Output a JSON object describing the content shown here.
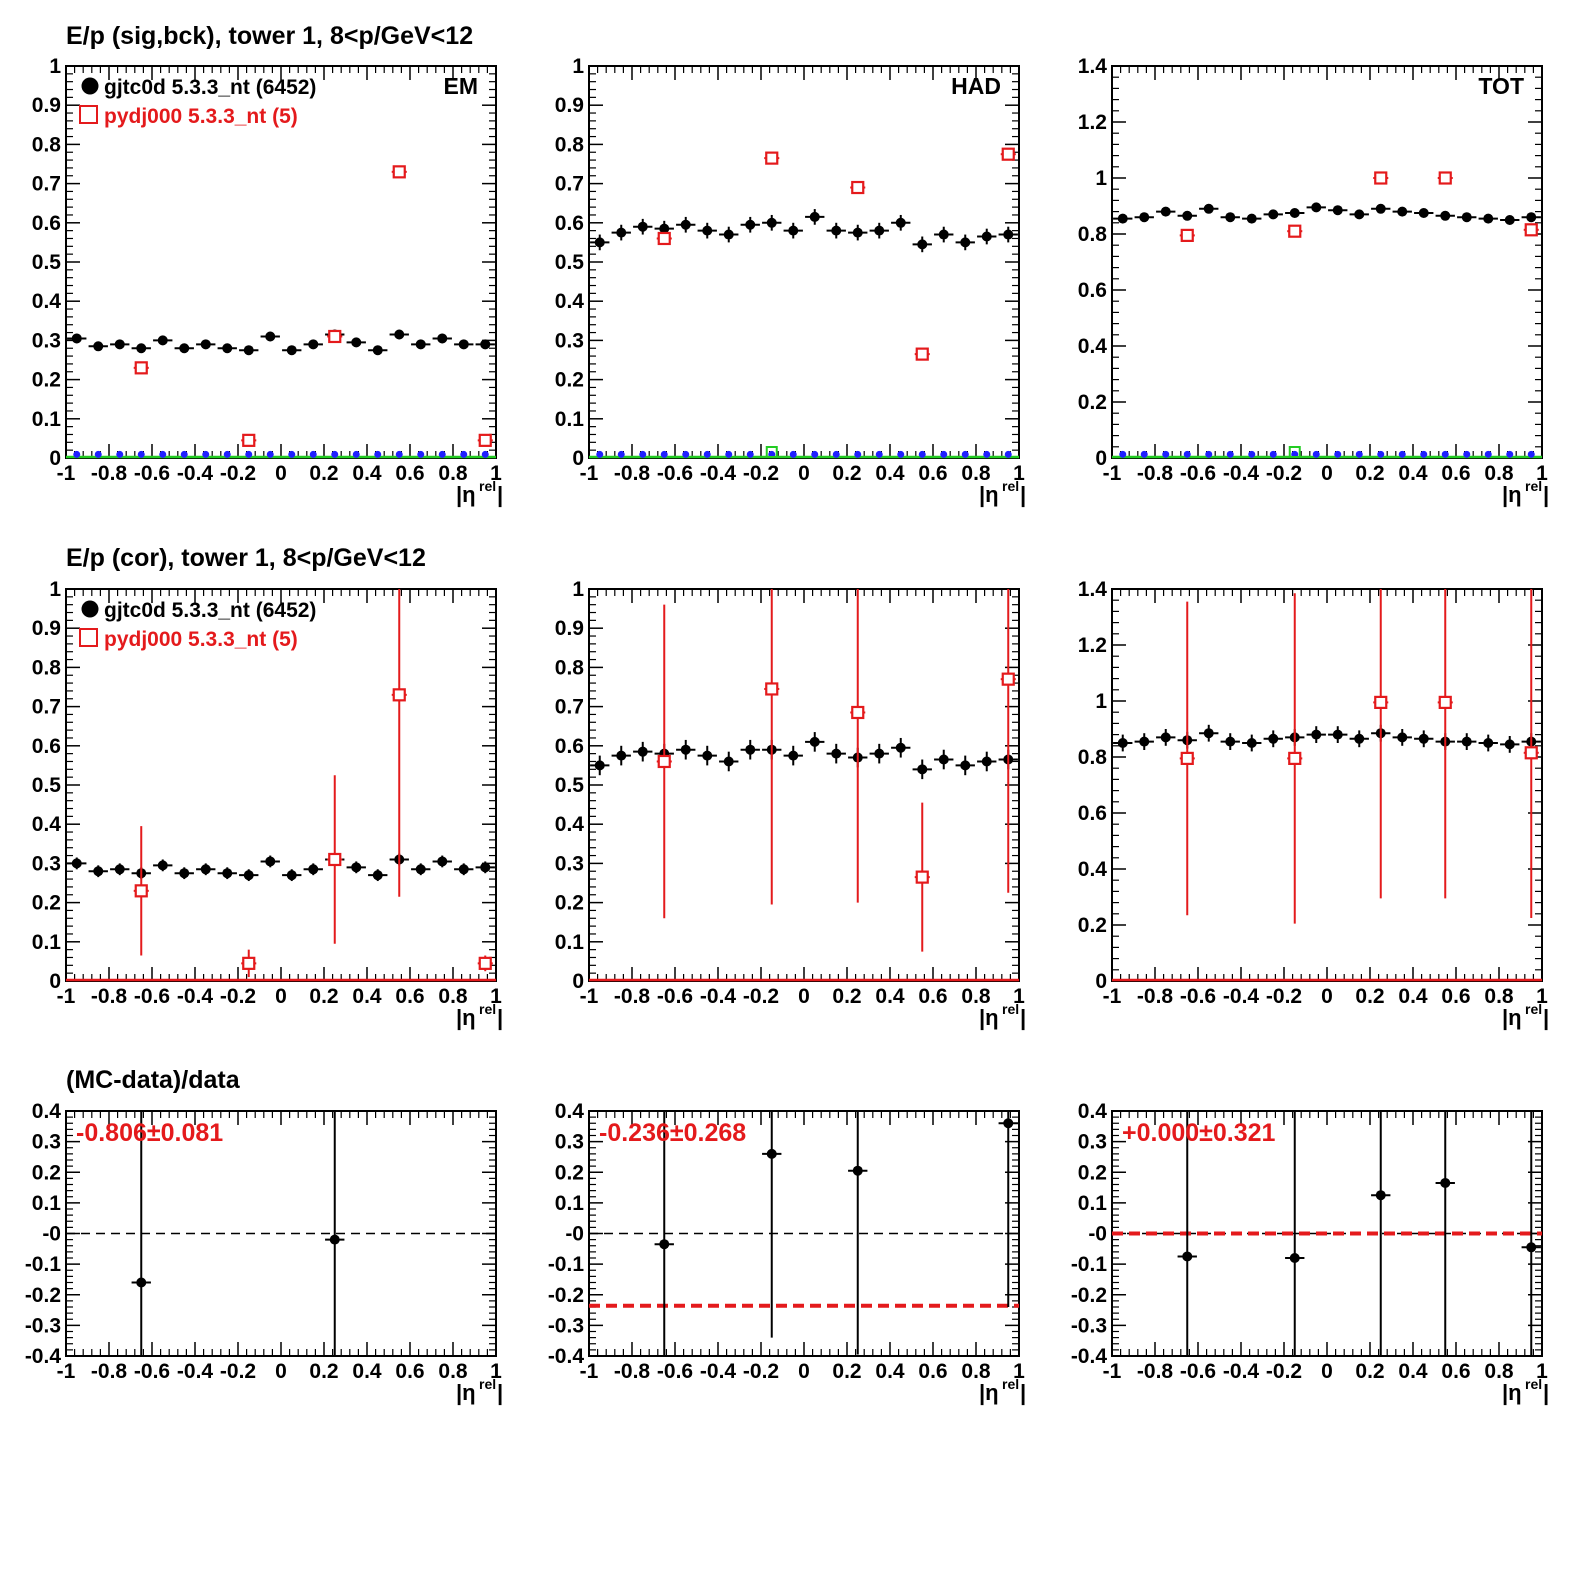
{
  "figure": {
    "row_titles": [
      "E/p (sig,bck), tower 1,  8<p/GeV<12",
      "E/p (cor), tower 1,  8<p/GeV<12",
      "(MC-data)/data"
    ],
    "xlabel": "|η",
    "xlabel_sup": "rel",
    "xlabel_close": "|",
    "colors": {
      "data": "#000000",
      "mc": "#e41a1c",
      "bck_blue": "#1f1fff",
      "bck_green": "#22cc22",
      "dashed_zero": "#000000"
    }
  },
  "legend": {
    "data_label": "gjtc0d 5.3.3_nt (6452)",
    "mc_label": "pydj000 5.3.3_nt (5)"
  },
  "chart_data": [
    {
      "id": "r1c1",
      "type": "scatter",
      "corner_label": "EM",
      "xlim": [
        -1,
        1
      ],
      "ylim": [
        0,
        1
      ],
      "xticks": [
        "-1",
        "-0.8",
        "-0.6",
        "-0.4",
        "-0.2",
        "0",
        "0.2",
        "0.4",
        "0.6",
        "0.8",
        "1"
      ],
      "yticks": [
        "0",
        "0.1",
        "0.2",
        "0.3",
        "0.4",
        "0.5",
        "0.6",
        "0.7",
        "0.8",
        "0.9",
        "1"
      ],
      "series": [
        {
          "name": "gjtc0d 5.3.3_nt (6452)",
          "color": "#000000",
          "marker": "dot",
          "x": [
            -0.95,
            -0.85,
            -0.75,
            -0.65,
            -0.55,
            -0.45,
            -0.35,
            -0.25,
            -0.15,
            -0.05,
            0.05,
            0.15,
            0.25,
            0.35,
            0.45,
            0.55,
            0.65,
            0.75,
            0.85,
            0.95
          ],
          "y": [
            0.305,
            0.285,
            0.29,
            0.28,
            0.3,
            0.28,
            0.29,
            0.28,
            0.275,
            0.31,
            0.275,
            0.29,
            0.315,
            0.295,
            0.275,
            0.315,
            0.29,
            0.305,
            0.29,
            0.29
          ],
          "yerr": [
            0.012,
            0.012,
            0.012,
            0.012,
            0.012,
            0.012,
            0.012,
            0.012,
            0.012,
            0.012,
            0.012,
            0.012,
            0.012,
            0.012,
            0.012,
            0.012,
            0.012,
            0.012,
            0.012,
            0.012
          ]
        },
        {
          "name": "pydj000 5.3.3_nt (5)",
          "color": "#e41a1c",
          "marker": "open-square",
          "x": [
            -0.65,
            -0.15,
            0.25,
            0.55,
            0.95
          ],
          "y": [
            0.23,
            0.045,
            0.31,
            0.73,
            0.045
          ],
          "yerr": [
            0,
            0,
            0,
            0,
            0
          ]
        }
      ],
      "background": {
        "blue_x": [
          -0.95,
          -0.85,
          -0.75,
          -0.65,
          -0.55,
          -0.45,
          -0.35,
          -0.25,
          -0.15,
          -0.05,
          0.05,
          0.15,
          0.25,
          0.35,
          0.45,
          0.55,
          0.65,
          0.75,
          0.85,
          0.95
        ],
        "blue_y": 0.004,
        "green_x": []
      },
      "legend": true
    },
    {
      "id": "r1c2",
      "type": "scatter",
      "corner_label": "HAD",
      "xlim": [
        -1,
        1
      ],
      "ylim": [
        0,
        1
      ],
      "xticks": [
        "-1",
        "-0.8",
        "-0.6",
        "-0.4",
        "-0.2",
        "0",
        "0.2",
        "0.4",
        "0.6",
        "0.8",
        "1"
      ],
      "yticks": [
        "0",
        "0.1",
        "0.2",
        "0.3",
        "0.4",
        "0.5",
        "0.6",
        "0.7",
        "0.8",
        "0.9",
        "1"
      ],
      "series": [
        {
          "name": "gjtc0d 5.3.3_nt (6452)",
          "color": "#000000",
          "marker": "dot",
          "x": [
            -0.95,
            -0.85,
            -0.75,
            -0.65,
            -0.55,
            -0.45,
            -0.35,
            -0.25,
            -0.15,
            -0.05,
            0.05,
            0.15,
            0.25,
            0.35,
            0.45,
            0.55,
            0.65,
            0.75,
            0.85,
            0.95
          ],
          "y": [
            0.55,
            0.575,
            0.59,
            0.585,
            0.595,
            0.58,
            0.57,
            0.595,
            0.6,
            0.58,
            0.615,
            0.58,
            0.575,
            0.58,
            0.6,
            0.545,
            0.57,
            0.55,
            0.565,
            0.57
          ],
          "yerr": [
            0.02,
            0.02,
            0.02,
            0.02,
            0.02,
            0.02,
            0.02,
            0.02,
            0.02,
            0.02,
            0.02,
            0.02,
            0.02,
            0.02,
            0.02,
            0.02,
            0.02,
            0.02,
            0.02,
            0.02
          ]
        },
        {
          "name": "pydj000 5.3.3_nt (5)",
          "color": "#e41a1c",
          "marker": "open-square",
          "x": [
            -0.65,
            -0.15,
            0.25,
            0.55,
            0.95
          ],
          "y": [
            0.56,
            0.765,
            0.69,
            0.265,
            0.775
          ],
          "yerr": [
            0,
            0,
            0,
            0,
            0
          ]
        }
      ],
      "background": {
        "blue_x": [
          -0.95,
          -0.85,
          -0.75,
          -0.65,
          -0.55,
          -0.45,
          -0.35,
          -0.25,
          -0.15,
          -0.05,
          0.05,
          0.15,
          0.25,
          0.35,
          0.45,
          0.55,
          0.65,
          0.75,
          0.85,
          0.95
        ],
        "blue_y": 0.004,
        "green_x": [
          -0.15
        ]
      },
      "legend": false
    },
    {
      "id": "r1c3",
      "type": "scatter",
      "corner_label": "TOT",
      "xlim": [
        -1,
        1
      ],
      "ylim": [
        0,
        1.4
      ],
      "xticks": [
        "-1",
        "-0.8",
        "-0.6",
        "-0.4",
        "-0.2",
        "0",
        "0.2",
        "0.4",
        "0.6",
        "0.8",
        "1"
      ],
      "yticks": [
        "0",
        "0.2",
        "0.4",
        "0.6",
        "0.8",
        "1",
        "1.2",
        "1.4"
      ],
      "series": [
        {
          "name": "gjtc0d 5.3.3_nt (6452)",
          "color": "#000000",
          "marker": "dot",
          "x": [
            -0.95,
            -0.85,
            -0.75,
            -0.65,
            -0.55,
            -0.45,
            -0.35,
            -0.25,
            -0.15,
            -0.05,
            0.05,
            0.15,
            0.25,
            0.35,
            0.45,
            0.55,
            0.65,
            0.75,
            0.85,
            0.95
          ],
          "y": [
            0.855,
            0.86,
            0.88,
            0.865,
            0.89,
            0.86,
            0.855,
            0.87,
            0.875,
            0.895,
            0.885,
            0.87,
            0.89,
            0.88,
            0.875,
            0.865,
            0.86,
            0.855,
            0.85,
            0.86
          ],
          "yerr": [
            0.012,
            0.012,
            0.012,
            0.012,
            0.012,
            0.012,
            0.012,
            0.012,
            0.012,
            0.012,
            0.012,
            0.012,
            0.012,
            0.012,
            0.012,
            0.012,
            0.012,
            0.012,
            0.012,
            0.012
          ]
        },
        {
          "name": "pydj000 5.3.3_nt (5)",
          "color": "#e41a1c",
          "marker": "open-square",
          "x": [
            -0.65,
            -0.15,
            0.25,
            0.55,
            0.95
          ],
          "y": [
            0.795,
            0.81,
            1.0,
            1.0,
            0.815
          ],
          "yerr": [
            0,
            0,
            0,
            0,
            0
          ]
        }
      ],
      "background": {
        "blue_x": [
          -0.95,
          -0.85,
          -0.75,
          -0.65,
          -0.55,
          -0.45,
          -0.35,
          -0.25,
          -0.15,
          -0.05,
          0.05,
          0.15,
          0.25,
          0.35,
          0.45,
          0.55,
          0.65,
          0.75,
          0.85,
          0.95
        ],
        "blue_y": 0.006,
        "green_x": [
          -0.15
        ]
      },
      "legend": false
    },
    {
      "id": "r2c1",
      "type": "scatter",
      "corner_label": "",
      "xlim": [
        -1,
        1
      ],
      "ylim": [
        0,
        1
      ],
      "xticks": [
        "-1",
        "-0.8",
        "-0.6",
        "-0.4",
        "-0.2",
        "0",
        "0.2",
        "0.4",
        "0.6",
        "0.8",
        "1"
      ],
      "yticks": [
        "0",
        "0.1",
        "0.2",
        "0.3",
        "0.4",
        "0.5",
        "0.6",
        "0.7",
        "0.8",
        "0.9",
        "1"
      ],
      "series": [
        {
          "name": "gjtc0d 5.3.3_nt (6452)",
          "color": "#000000",
          "marker": "dot",
          "x": [
            -0.95,
            -0.85,
            -0.75,
            -0.65,
            -0.55,
            -0.45,
            -0.35,
            -0.25,
            -0.15,
            -0.05,
            0.05,
            0.15,
            0.25,
            0.35,
            0.45,
            0.55,
            0.65,
            0.75,
            0.85,
            0.95
          ],
          "y": [
            0.3,
            0.28,
            0.285,
            0.275,
            0.295,
            0.275,
            0.285,
            0.275,
            0.27,
            0.305,
            0.27,
            0.285,
            0.31,
            0.29,
            0.27,
            0.31,
            0.285,
            0.305,
            0.285,
            0.29
          ],
          "yerr": [
            0.015,
            0.015,
            0.015,
            0.015,
            0.015,
            0.015,
            0.015,
            0.015,
            0.015,
            0.015,
            0.015,
            0.015,
            0.015,
            0.015,
            0.015,
            0.015,
            0.015,
            0.015,
            0.015,
            0.015
          ]
        },
        {
          "name": "pydj000 5.3.3_nt (5)",
          "color": "#e41a1c",
          "marker": "open-square",
          "x": [
            -0.65,
            -0.15,
            0.25,
            0.55,
            0.95
          ],
          "y": [
            0.23,
            0.045,
            0.31,
            0.73,
            0.045
          ],
          "yerr": [
            0.165,
            0.035,
            0.215,
            0.515,
            0.02
          ]
        }
      ],
      "background": {
        "blue_x": [],
        "blue_y": 0,
        "green_x": [],
        "red_baseline": true
      },
      "legend": true
    },
    {
      "id": "r2c2",
      "type": "scatter",
      "corner_label": "",
      "xlim": [
        -1,
        1
      ],
      "ylim": [
        0,
        1
      ],
      "xticks": [
        "-1",
        "-0.8",
        "-0.6",
        "-0.4",
        "-0.2",
        "0",
        "0.2",
        "0.4",
        "0.6",
        "0.8",
        "1"
      ],
      "yticks": [
        "0",
        "0.1",
        "0.2",
        "0.3",
        "0.4",
        "0.5",
        "0.6",
        "0.7",
        "0.8",
        "0.9",
        "1"
      ],
      "series": [
        {
          "name": "gjtc0d 5.3.3_nt (6452)",
          "color": "#000000",
          "marker": "dot",
          "x": [
            -0.95,
            -0.85,
            -0.75,
            -0.65,
            -0.55,
            -0.45,
            -0.35,
            -0.25,
            -0.15,
            -0.05,
            0.05,
            0.15,
            0.25,
            0.35,
            0.45,
            0.55,
            0.65,
            0.75,
            0.85,
            0.95
          ],
          "y": [
            0.55,
            0.575,
            0.585,
            0.58,
            0.59,
            0.575,
            0.56,
            0.59,
            0.59,
            0.575,
            0.61,
            0.58,
            0.57,
            0.58,
            0.595,
            0.54,
            0.565,
            0.55,
            0.56,
            0.565
          ],
          "yerr": [
            0.025,
            0.025,
            0.025,
            0.025,
            0.025,
            0.025,
            0.025,
            0.025,
            0.025,
            0.025,
            0.025,
            0.025,
            0.025,
            0.025,
            0.025,
            0.025,
            0.025,
            0.025,
            0.025,
            0.025
          ]
        },
        {
          "name": "pydj000 5.3.3_nt (5)",
          "color": "#e41a1c",
          "marker": "open-square",
          "x": [
            -0.65,
            -0.15,
            0.25,
            0.55,
            0.95
          ],
          "y": [
            0.56,
            0.745,
            0.685,
            0.265,
            0.77
          ],
          "yerr": [
            0.4,
            0.55,
            0.485,
            0.19,
            0.545
          ]
        }
      ],
      "background": {
        "blue_x": [],
        "blue_y": 0,
        "green_x": [],
        "red_baseline": true
      },
      "legend": false
    },
    {
      "id": "r2c3",
      "type": "scatter",
      "corner_label": "",
      "xlim": [
        -1,
        1
      ],
      "ylim": [
        0,
        1.4
      ],
      "xticks": [
        "-1",
        "-0.8",
        "-0.6",
        "-0.4",
        "-0.2",
        "0",
        "0.2",
        "0.4",
        "0.6",
        "0.8",
        "1"
      ],
      "yticks": [
        "0",
        "0.2",
        "0.4",
        "0.6",
        "0.8",
        "1",
        "1.2",
        "1.4"
      ],
      "series": [
        {
          "name": "gjtc0d 5.3.3_nt (6452)",
          "color": "#000000",
          "marker": "dot",
          "x": [
            -0.95,
            -0.85,
            -0.75,
            -0.65,
            -0.55,
            -0.45,
            -0.35,
            -0.25,
            -0.15,
            -0.05,
            0.05,
            0.15,
            0.25,
            0.35,
            0.45,
            0.55,
            0.65,
            0.75,
            0.85,
            0.95
          ],
          "y": [
            0.85,
            0.855,
            0.87,
            0.86,
            0.885,
            0.855,
            0.85,
            0.865,
            0.87,
            0.88,
            0.88,
            0.865,
            0.885,
            0.87,
            0.865,
            0.855,
            0.855,
            0.85,
            0.845,
            0.855
          ],
          "yerr": [
            0.03,
            0.03,
            0.03,
            0.03,
            0.03,
            0.03,
            0.03,
            0.03,
            0.03,
            0.03,
            0.03,
            0.03,
            0.03,
            0.03,
            0.03,
            0.03,
            0.03,
            0.03,
            0.03,
            0.03
          ]
        },
        {
          "name": "pydj000 5.3.3_nt (5)",
          "color": "#e41a1c",
          "marker": "open-square",
          "x": [
            -0.65,
            -0.15,
            0.25,
            0.55,
            0.95
          ],
          "y": [
            0.795,
            0.795,
            0.995,
            0.995,
            0.815
          ],
          "yerr": [
            0.56,
            0.59,
            0.7,
            0.7,
            0.59
          ]
        }
      ],
      "background": {
        "blue_x": [],
        "blue_y": 0,
        "green_x": [],
        "red_baseline": true
      },
      "legend": false
    },
    {
      "id": "r3c1",
      "type": "scatter",
      "corner_label": "",
      "xlim": [
        -1,
        1
      ],
      "ylim": [
        -0.4,
        0.4
      ],
      "xticks": [
        "-1",
        "-0.8",
        "-0.6",
        "-0.4",
        "-0.2",
        "0",
        "0.2",
        "0.4",
        "0.6",
        "0.8",
        "1"
      ],
      "yticks": [
        "-0.4",
        "-0.3",
        "-0.2",
        "-0.1",
        "-0",
        "0.1",
        "0.2",
        "0.3",
        "0.4"
      ],
      "ratio_text": "-0.806±0.081",
      "ratio_line": -0.806,
      "series": [
        {
          "name": "ratio",
          "color": "#000000",
          "marker": "dot",
          "x": [
            -0.65,
            0.25
          ],
          "y": [
            -0.16,
            -0.02
          ],
          "yerr": [
            0.6,
            0.6
          ]
        }
      ],
      "legend": false
    },
    {
      "id": "r3c2",
      "type": "scatter",
      "corner_label": "",
      "xlim": [
        -1,
        1
      ],
      "ylim": [
        -0.4,
        0.4
      ],
      "xticks": [
        "-1",
        "-0.8",
        "-0.6",
        "-0.4",
        "-0.2",
        "0",
        "0.2",
        "0.4",
        "0.6",
        "0.8",
        "1"
      ],
      "yticks": [
        "-0.4",
        "-0.3",
        "-0.2",
        "-0.1",
        "-0",
        "0.1",
        "0.2",
        "0.3",
        "0.4"
      ],
      "ratio_text": "-0.236±0.268",
      "ratio_line": -0.236,
      "series": [
        {
          "name": "ratio",
          "color": "#000000",
          "marker": "dot",
          "x": [
            -0.65,
            -0.15,
            0.25,
            0.95
          ],
          "y": [
            -0.035,
            0.26,
            0.205,
            0.36
          ],
          "yerr": [
            0.6,
            0.6,
            0.6,
            0.6
          ]
        }
      ],
      "legend": false
    },
    {
      "id": "r3c3",
      "type": "scatter",
      "corner_label": "",
      "xlim": [
        -1,
        1
      ],
      "ylim": [
        -0.4,
        0.4
      ],
      "xticks": [
        "-1",
        "-0.8",
        "-0.6",
        "-0.4",
        "-0.2",
        "0",
        "0.2",
        "0.4",
        "0.6",
        "0.8",
        "1"
      ],
      "yticks": [
        "-0.4",
        "-0.3",
        "-0.2",
        "-0.1",
        "-0",
        "0.1",
        "0.2",
        "0.3",
        "0.4"
      ],
      "ratio_text": "+0.000±0.321",
      "ratio_line": 0.0,
      "series": [
        {
          "name": "ratio",
          "color": "#000000",
          "marker": "dot",
          "x": [
            -0.65,
            -0.15,
            0.25,
            0.55,
            0.95
          ],
          "y": [
            -0.075,
            -0.08,
            0.125,
            0.165,
            -0.045
          ],
          "yerr": [
            0.6,
            0.6,
            0.6,
            0.6,
            0.6
          ]
        }
      ],
      "legend": false
    }
  ]
}
